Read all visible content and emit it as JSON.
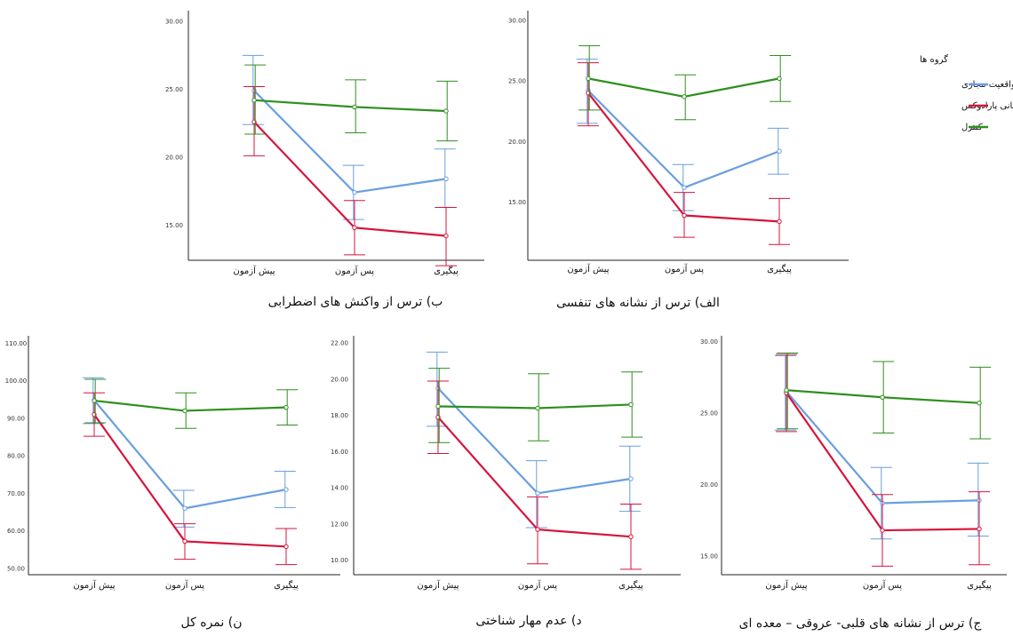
{
  "legend": {
    "title": "گروه ها",
    "items": [
      {
        "label": "فن آوری واقعیت مجازی",
        "color": "#6a9ee0"
      },
      {
        "label": "برنامه زمانی پارادوکس",
        "color": "#d6143c"
      },
      {
        "label": "کنترل",
        "color": "#2f8f1f"
      }
    ]
  },
  "chart_data": [
    {
      "type": "line",
      "title": "ب) ترس از واکنش های اضطرابی",
      "categories": [
        "پیش آزمون",
        "پس آزمون",
        "پیگیری"
      ],
      "yticks": [
        "15.00",
        "20.00",
        "25.00",
        "30.00"
      ],
      "ylim": [
        12.4,
        30.8
      ],
      "series": [
        {
          "name": "فن آوری واقعیت مجازی",
          "color": "#6a9ee0",
          "values": [
            24.9,
            17.4,
            18.4
          ],
          "lower": [
            22.4,
            15.4,
            16.3
          ],
          "upper": [
            27.5,
            19.4,
            20.6
          ]
        },
        {
          "name": "برنامه زمانی پارادوکس",
          "color": "#d6143c",
          "values": [
            22.6,
            14.8,
            14.2
          ],
          "lower": [
            20.1,
            12.8,
            12.0
          ],
          "upper": [
            25.2,
            16.8,
            16.3
          ]
        },
        {
          "name": "کنترل",
          "color": "#2f8f1f",
          "values": [
            24.2,
            23.7,
            23.4
          ],
          "lower": [
            21.7,
            21.8,
            21.2
          ],
          "upper": [
            26.8,
            25.7,
            25.6
          ]
        }
      ]
    },
    {
      "type": "line",
      "title": "الف) ترس از نشانه های تنفسی",
      "categories": [
        "پیش آزمون",
        "پس آزمون",
        "پیگیری"
      ],
      "yticks": [
        "15.00",
        "20.00",
        "25.00",
        "30.00"
      ],
      "ylim": [
        10.2,
        30.8
      ],
      "series": [
        {
          "name": "فن آوری واقعیت مجازی",
          "color": "#6a9ee0",
          "values": [
            24.2,
            16.2,
            19.2
          ],
          "lower": [
            21.5,
            14.3,
            17.3
          ],
          "upper": [
            26.8,
            18.1,
            21.1
          ]
        },
        {
          "name": "برنامه زمانی پارادوکس",
          "color": "#d6143c",
          "values": [
            24.0,
            13.9,
            13.4
          ],
          "lower": [
            21.3,
            12.1,
            11.5
          ],
          "upper": [
            26.5,
            15.8,
            15.3
          ]
        },
        {
          "name": "کنترل",
          "color": "#2f8f1f",
          "values": [
            25.2,
            23.7,
            25.2
          ],
          "lower": [
            22.6,
            21.8,
            23.3
          ],
          "upper": [
            27.9,
            25.5,
            27.1
          ]
        }
      ]
    },
    {
      "type": "line",
      "title": "ن) نمره کل",
      "categories": [
        "پیش آزمون",
        "پس آزمون",
        "پیگیری"
      ],
      "yticks": [
        "50.00",
        "60.00",
        "70.00",
        "80.00",
        "90.00",
        "100.00",
        "110.00"
      ],
      "ylim": [
        48.3,
        112.0
      ],
      "series": [
        {
          "name": "فن آوری واقعیت مجازی",
          "color": "#6a9ee0",
          "values": [
            94.8,
            66.0,
            71.0
          ],
          "lower": [
            88.6,
            61.0,
            66.2
          ],
          "upper": [
            100.8,
            70.8,
            75.9
          ]
        },
        {
          "name": "برنامه زمانی پارادوکس",
          "color": "#d6143c",
          "values": [
            91.0,
            57.2,
            55.8
          ],
          "lower": [
            85.2,
            52.4,
            51.0
          ],
          "upper": [
            96.8,
            61.9,
            60.6
          ]
        },
        {
          "name": "کنترل",
          "color": "#2f8f1f",
          "values": [
            94.7,
            92.0,
            92.9
          ],
          "lower": [
            88.8,
            87.3,
            88.2
          ],
          "upper": [
            100.4,
            96.8,
            97.6
          ]
        }
      ]
    },
    {
      "type": "line",
      "title": "د) عدم مهار شناختی",
      "categories": [
        "پیش آزمون",
        "پس آزمون",
        "پیگیری"
      ],
      "yticks": [
        "10.00",
        "12.00",
        "14.00",
        "16.00",
        "18.00",
        "20.00",
        "22.00"
      ],
      "ylim": [
        9.2,
        22.4
      ],
      "series": [
        {
          "name": "فن آوری واقعیت مجازی",
          "color": "#6a9ee0",
          "values": [
            19.5,
            13.7,
            14.5
          ],
          "lower": [
            17.4,
            11.8,
            12.7
          ],
          "upper": [
            21.5,
            15.5,
            16.3
          ]
        },
        {
          "name": "برنامه زمانی پارادوکس",
          "color": "#d6143c",
          "values": [
            17.9,
            11.7,
            11.3
          ],
          "lower": [
            15.9,
            9.8,
            9.5
          ],
          "upper": [
            19.9,
            13.5,
            13.1
          ]
        },
        {
          "name": "کنترل",
          "color": "#2f8f1f",
          "values": [
            18.5,
            18.4,
            18.6
          ],
          "lower": [
            16.5,
            16.6,
            16.8
          ],
          "upper": [
            20.6,
            20.3,
            20.4
          ]
        }
      ]
    },
    {
      "type": "line",
      "title": "ج) ترس از نشانه های قلبی- عروقی – معده ای",
      "categories": [
        "پیش آزمون",
        "پس آزمون",
        "پیگیری"
      ],
      "yticks": [
        "15.00",
        "20.00",
        "25.00",
        "30.00"
      ],
      "ylim": [
        13.7,
        30.4
      ],
      "series": [
        {
          "name": "فن آوری واقعیت مجازی",
          "color": "#6a9ee0",
          "values": [
            26.5,
            18.7,
            18.9
          ],
          "lower": [
            23.8,
            16.2,
            16.4
          ],
          "upper": [
            29.0,
            21.2,
            21.5
          ]
        },
        {
          "name": "برنامه زمانی پارادوکس",
          "color": "#d6143c",
          "values": [
            26.4,
            16.8,
            16.9
          ],
          "lower": [
            23.7,
            14.3,
            14.4
          ],
          "upper": [
            29.1,
            19.3,
            19.5
          ]
        },
        {
          "name": "کنترل",
          "color": "#2f8f1f",
          "values": [
            26.6,
            26.1,
            25.7
          ],
          "lower": [
            23.9,
            23.6,
            23.2
          ],
          "upper": [
            29.2,
            28.6,
            28.2
          ]
        }
      ]
    }
  ]
}
